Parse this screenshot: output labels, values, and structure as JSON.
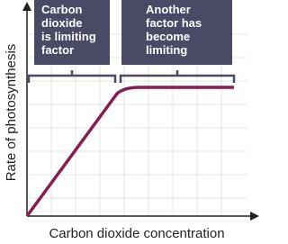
{
  "annotations": [
    {
      "lines": [
        "Carbon",
        "dioxide",
        "is limiting",
        "factor"
      ]
    },
    {
      "lines": [
        "Another",
        "factor has",
        "become",
        "limiting"
      ]
    }
  ],
  "x_axis_label": "Carbon dioxide concentration",
  "y_axis_label": "Rate of photosynthesis"
}
